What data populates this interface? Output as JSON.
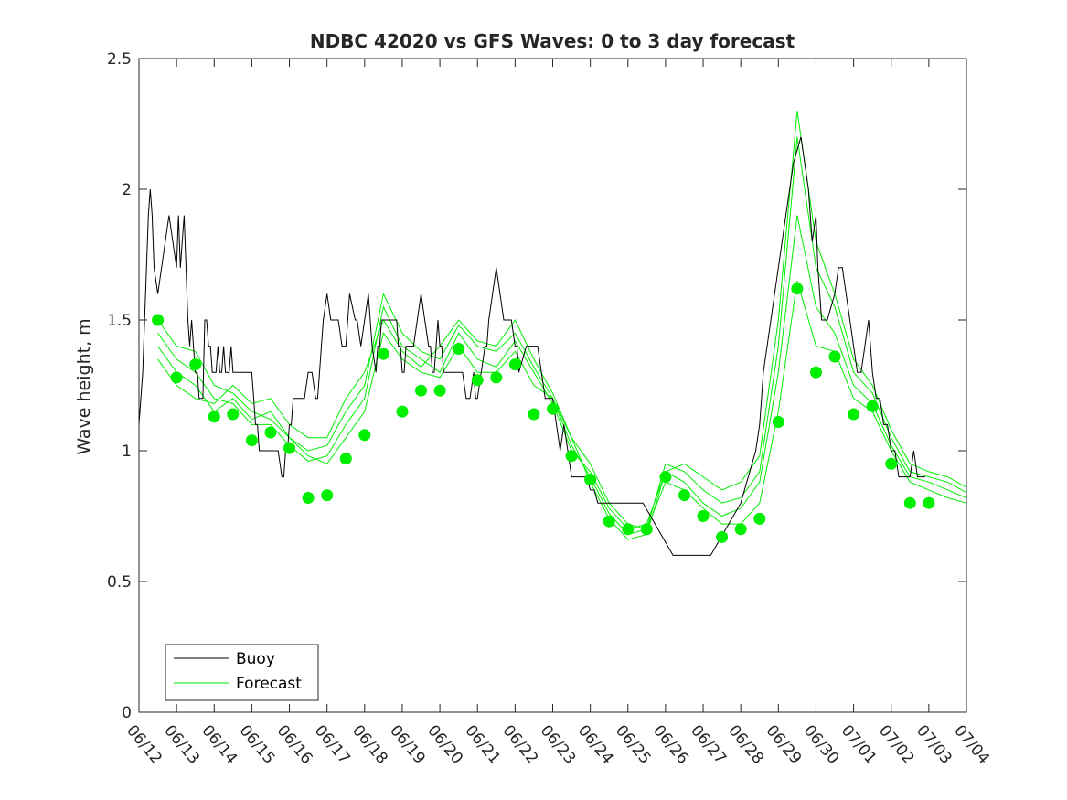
{
  "chart_data": {
    "type": "line",
    "title": "NDBC 42020 vs GFS Waves: 0 to 3 day forecast",
    "xlabel": "",
    "ylabel": "Wave height, m",
    "x_ticks": [
      "06/12",
      "06/13",
      "06/14",
      "06/15",
      "06/16",
      "06/17",
      "06/18",
      "06/19",
      "06/20",
      "06/21",
      "06/22",
      "06/23",
      "06/24",
      "06/25",
      "06/26",
      "06/27",
      "06/28",
      "06/29",
      "06/30",
      "07/01",
      "07/02",
      "07/03",
      "07/04"
    ],
    "xlim": [
      "06/12",
      "07/04"
    ],
    "ylim": [
      0,
      2.5
    ],
    "y_ticks": [
      0,
      0.5,
      1,
      1.5,
      2,
      2.5
    ],
    "grid": false,
    "legend_position": "bottom-left",
    "colors": {
      "buoy": "#000000",
      "forecast": "#00ee00"
    },
    "series": [
      {
        "name": "Buoy",
        "style": "line",
        "day_offset_from_06_12": [
          0,
          0.1,
          0.25,
          0.3,
          0.35,
          0.4,
          0.5,
          0.8,
          1.0,
          1.05,
          1.1,
          1.15,
          1.2,
          1.3,
          1.35,
          1.4,
          1.45,
          1.5,
          1.55,
          1.6,
          1.7,
          1.75,
          1.8,
          1.85,
          1.9,
          1.95,
          2.0,
          2.05,
          2.1,
          2.15,
          2.2,
          2.25,
          2.3,
          2.35,
          2.4,
          2.45,
          2.5,
          2.55,
          2.6,
          2.65,
          2.7,
          2.75,
          2.8,
          2.85,
          2.9,
          2.95,
          3.0,
          3.05,
          3.1,
          3.15,
          3.2,
          3.25,
          3.3,
          3.35,
          3.4,
          3.45,
          3.5,
          3.6,
          3.7,
          3.8,
          3.85,
          3.9,
          3.95,
          4.0,
          4.05,
          4.1,
          4.2,
          4.3,
          4.4,
          4.5,
          4.6,
          4.7,
          4.75,
          4.8,
          4.85,
          4.9,
          5.0,
          5.1,
          5.2,
          5.25,
          5.3,
          5.4,
          5.5,
          5.6,
          5.75,
          5.8,
          5.9,
          6.0,
          6.1,
          6.2,
          6.3,
          6.35,
          6.4,
          6.45,
          6.5,
          6.6,
          6.7,
          6.8,
          6.85,
          6.9,
          6.95,
          7.0,
          7.05,
          7.1,
          7.2,
          7.3,
          7.4,
          7.5,
          7.6,
          7.7,
          7.75,
          7.8,
          7.85,
          7.9,
          7.95,
          8.0,
          8.05,
          8.1,
          8.2,
          8.3,
          8.4,
          8.5,
          8.6,
          8.7,
          8.8,
          8.9,
          8.95,
          9.0,
          9.1,
          9.2,
          9.25,
          9.3,
          9.4,
          9.5,
          9.6,
          9.7,
          9.8,
          9.9,
          10.0,
          10.05,
          10.1,
          10.3,
          10.4,
          10.5,
          10.6,
          10.8,
          10.9,
          11.0,
          11.1,
          11.2,
          11.3,
          11.4,
          11.5,
          11.6,
          11.7,
          11.8,
          11.9,
          12.0,
          12.1,
          12.2,
          12.4,
          12.5,
          12.6,
          12.7,
          12.8,
          12.9,
          13.0,
          13.2,
          13.4,
          13.6,
          13.8,
          14.0,
          14.2,
          14.4,
          14.5,
          14.6,
          14.8,
          15.0,
          15.2,
          15.4,
          15.6,
          15.8,
          16.0,
          16.2,
          16.4,
          16.5,
          16.6,
          16.8,
          17.0,
          17.2,
          17.4,
          17.6,
          17.8,
          17.9,
          18.0,
          18.05,
          18.1,
          18.15,
          18.2,
          18.3,
          18.4,
          18.5,
          18.6,
          18.7,
          18.8,
          18.9,
          19.0,
          19.1,
          19.2,
          19.3,
          19.4,
          19.5,
          19.6,
          19.7,
          19.8,
          19.9,
          20.0,
          20.1,
          20.2,
          20.3,
          20.4,
          20.5,
          20.6,
          20.7,
          20.8,
          20.9,
          21.0,
          21.1,
          21.2
        ],
        "values": [
          1.1,
          1.3,
          1.9,
          2.0,
          1.9,
          1.7,
          1.6,
          1.9,
          1.7,
          1.9,
          1.7,
          1.8,
          1.9,
          1.5,
          1.4,
          1.5,
          1.4,
          1.3,
          1.3,
          1.2,
          1.2,
          1.5,
          1.5,
          1.4,
          1.4,
          1.3,
          1.3,
          1.3,
          1.4,
          1.3,
          1.3,
          1.4,
          1.3,
          1.3,
          1.3,
          1.4,
          1.3,
          1.3,
          1.3,
          1.3,
          1.3,
          1.3,
          1.3,
          1.3,
          1.3,
          1.3,
          1.3,
          1.2,
          1.1,
          1.1,
          1.0,
          1.0,
          1.0,
          1.0,
          1.0,
          1.0,
          1.0,
          1.0,
          1.0,
          0.9,
          0.9,
          1.0,
          1.0,
          1.1,
          1.1,
          1.2,
          1.2,
          1.2,
          1.2,
          1.3,
          1.3,
          1.2,
          1.2,
          1.3,
          1.4,
          1.5,
          1.6,
          1.5,
          1.5,
          1.5,
          1.5,
          1.4,
          1.4,
          1.6,
          1.5,
          1.5,
          1.4,
          1.5,
          1.6,
          1.4,
          1.3,
          1.4,
          1.4,
          1.5,
          1.5,
          1.5,
          1.5,
          1.5,
          1.5,
          1.4,
          1.4,
          1.3,
          1.3,
          1.4,
          1.4,
          1.4,
          1.5,
          1.6,
          1.5,
          1.4,
          1.4,
          1.3,
          1.3,
          1.4,
          1.5,
          1.4,
          1.4,
          1.3,
          1.3,
          1.3,
          1.3,
          1.3,
          1.3,
          1.2,
          1.2,
          1.3,
          1.2,
          1.2,
          1.3,
          1.4,
          1.4,
          1.5,
          1.6,
          1.7,
          1.6,
          1.5,
          1.5,
          1.5,
          1.4,
          1.4,
          1.3,
          1.4,
          1.4,
          1.4,
          1.4,
          1.2,
          1.2,
          1.2,
          1.1,
          1.0,
          1.1,
          1.0,
          0.9,
          0.9,
          0.9,
          0.9,
          0.9,
          0.85,
          0.85,
          0.8,
          0.8,
          0.8,
          0.8,
          0.8,
          0.8,
          0.8,
          0.8,
          0.8,
          0.8,
          0.75,
          0.7,
          0.65,
          0.6,
          0.6,
          0.6,
          0.6,
          0.6,
          0.6,
          0.6,
          0.65,
          0.7,
          0.75,
          0.8,
          0.9,
          1.0,
          1.1,
          1.3,
          1.5,
          1.7,
          1.9,
          2.1,
          2.2,
          2.0,
          1.8,
          1.9,
          1.7,
          1.6,
          1.5,
          1.5,
          1.5,
          1.55,
          1.6,
          1.7,
          1.7,
          1.6,
          1.5,
          1.4,
          1.3,
          1.3,
          1.4,
          1.5,
          1.3,
          1.2,
          1.2,
          1.1,
          1.1,
          1.0,
          1.0,
          0.9,
          0.9,
          0.9,
          0.9,
          1.0,
          0.9,
          0.9,
          0.9
        ]
      },
      {
        "name": "Forecast",
        "style": "lines+markers",
        "marker_days": [
          0.5,
          1.0,
          1.5,
          2.0,
          2.5,
          3.0,
          3.5,
          4.0,
          4.5,
          5.0,
          5.5,
          6.0,
          6.5,
          7.0,
          7.5,
          8.0,
          8.5,
          9.0,
          9.5,
          10.0,
          10.5,
          11.0,
          11.5,
          12.0,
          12.5,
          13.0,
          13.5,
          14.0,
          14.5,
          15.0,
          15.5,
          16.0,
          16.5,
          17.0,
          17.5,
          18.0,
          18.5,
          19.0,
          19.5,
          20.0,
          20.5,
          21.0
        ],
        "marker_values": [
          1.5,
          1.28,
          1.33,
          1.13,
          1.14,
          1.04,
          1.07,
          1.01,
          0.82,
          0.83,
          0.97,
          1.06,
          1.37,
          1.15,
          1.23,
          1.23,
          1.39,
          1.27,
          1.28,
          1.33,
          1.14,
          1.16,
          0.98,
          0.89,
          0.73,
          0.7,
          0.7,
          0.9,
          0.83,
          0.75,
          0.67,
          0.7,
          0.74,
          1.11,
          1.62,
          1.3,
          1.36,
          1.14,
          1.17,
          0.95,
          0.8,
          0.8
        ],
        "line_days": [
          0.5,
          1.0,
          1.5,
          2.0,
          2.5,
          3.0,
          3.5,
          4.0,
          4.5,
          5.0,
          5.5,
          6.0,
          6.5,
          7.0,
          7.5,
          8.0,
          8.5,
          9.0,
          9.5,
          10.0,
          10.5,
          11.0,
          11.5,
          12.0,
          12.5,
          13.0,
          13.5,
          14.0,
          14.5,
          15.0,
          15.5,
          16.0,
          16.5,
          17.0,
          17.5,
          18.0,
          18.5,
          19.0,
          19.5,
          20.0,
          20.5,
          21.0,
          21.5,
          22.0
        ],
        "forecast_runs": [
          [
            1.5,
            1.4,
            1.38,
            1.25,
            1.22,
            1.15,
            1.12,
            1.05,
            0.98,
            0.95,
            1.05,
            1.15,
            1.45,
            1.35,
            1.3,
            1.28,
            1.4,
            1.3,
            1.3,
            1.38,
            1.25,
            1.2,
            1.05,
            0.95,
            0.8,
            0.72,
            0.7,
            0.88,
            0.85,
            0.78,
            0.72,
            0.72,
            0.8,
            1.15,
            1.65,
            1.4,
            1.38,
            1.2,
            1.15,
            1.0,
            0.88,
            0.85,
            0.82,
            0.8
          ],
          [
            1.45,
            1.35,
            1.3,
            1.2,
            1.18,
            1.1,
            1.1,
            1.02,
            0.96,
            0.98,
            1.1,
            1.2,
            1.55,
            1.4,
            1.35,
            1.3,
            1.45,
            1.35,
            1.32,
            1.42,
            1.3,
            1.18,
            1.0,
            0.92,
            0.78,
            0.7,
            0.72,
            0.92,
            0.88,
            0.8,
            0.75,
            0.78,
            0.88,
            1.3,
            1.9,
            1.55,
            1.45,
            1.25,
            1.18,
            1.02,
            0.9,
            0.88,
            0.85,
            0.82
          ],
          [
            1.4,
            1.3,
            1.25,
            1.15,
            1.2,
            1.12,
            1.15,
            1.05,
            1.0,
            1.02,
            1.15,
            1.25,
            1.6,
            1.45,
            1.38,
            1.35,
            1.48,
            1.4,
            1.38,
            1.45,
            1.32,
            1.2,
            1.02,
            0.9,
            0.76,
            0.68,
            0.7,
            0.95,
            0.92,
            0.85,
            0.8,
            0.82,
            0.92,
            1.4,
            2.2,
            1.7,
            1.55,
            1.3,
            1.22,
            1.05,
            0.92,
            0.9,
            0.88,
            0.84
          ],
          [
            1.35,
            1.25,
            1.2,
            1.18,
            1.25,
            1.18,
            1.2,
            1.1,
            1.05,
            1.05,
            1.2,
            1.3,
            1.5,
            1.38,
            1.32,
            1.4,
            1.5,
            1.42,
            1.4,
            1.5,
            1.35,
            1.22,
            1.05,
            0.88,
            0.74,
            0.66,
            0.68,
            0.92,
            0.95,
            0.9,
            0.85,
            0.88,
            0.98,
            1.5,
            2.3,
            1.8,
            1.6,
            1.35,
            1.25,
            1.08,
            0.95,
            0.92,
            0.9,
            0.86
          ]
        ]
      }
    ]
  }
}
